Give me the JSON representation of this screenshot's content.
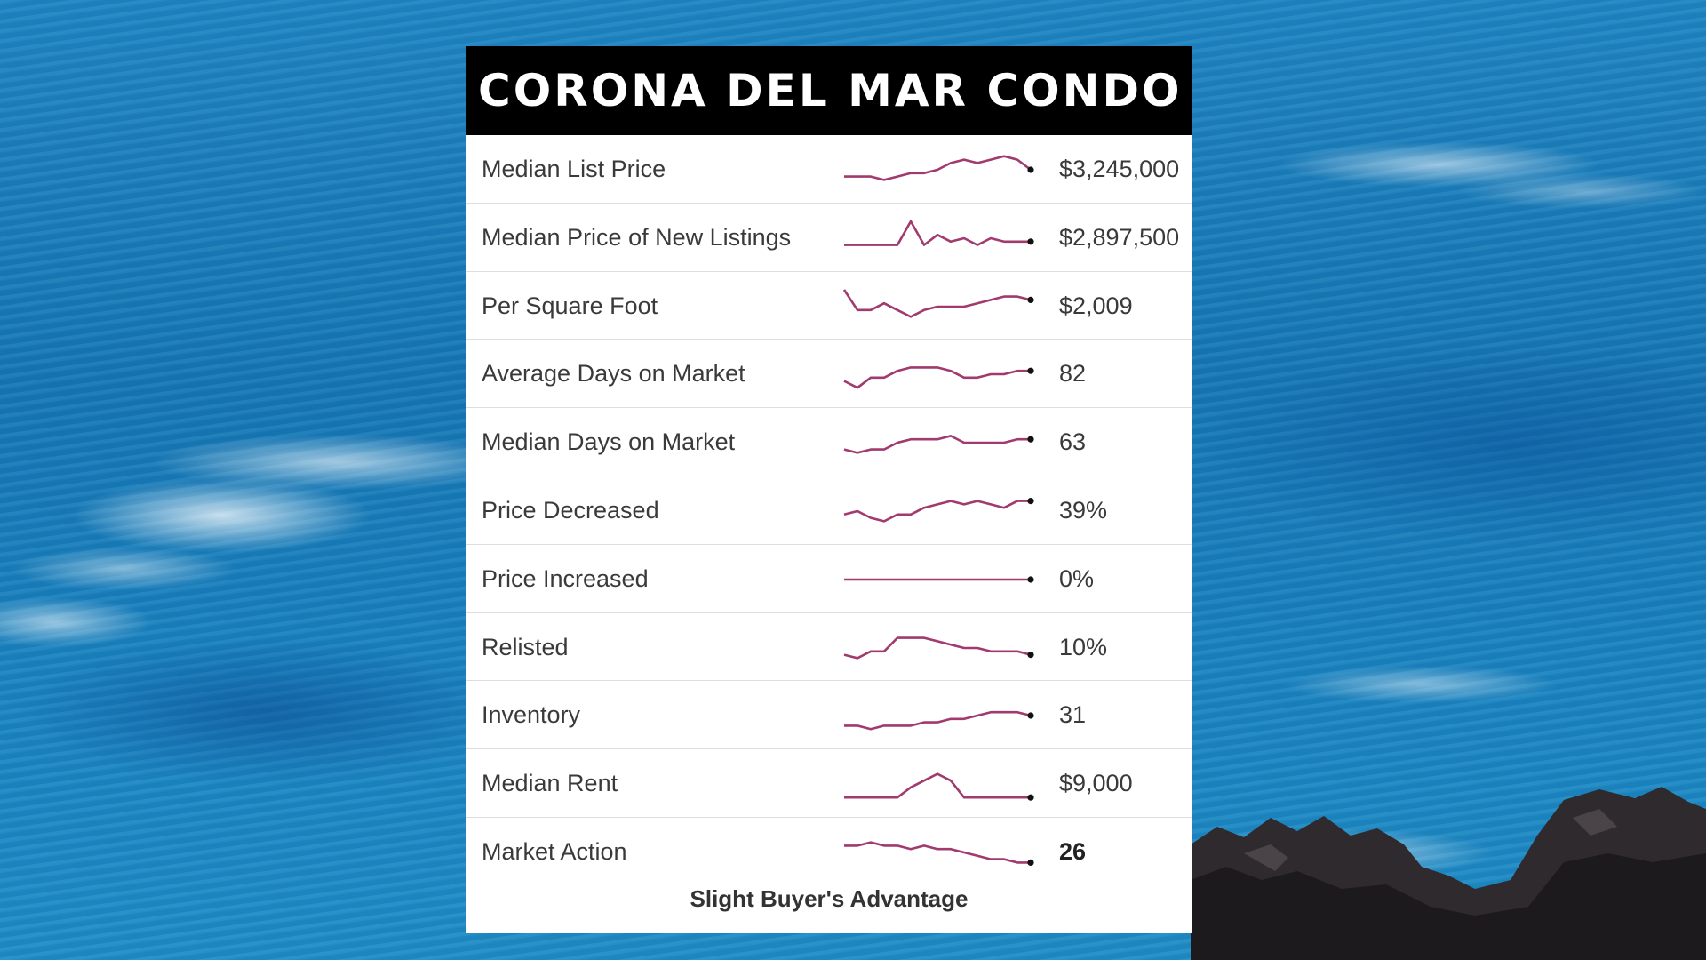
{
  "title": "CORONA DEL MAR CONDO",
  "colors": {
    "header_bg": "#000000",
    "sparkline": "#a13a6e",
    "sparkline_end": "#111111",
    "card_bg": "#ffffff",
    "text": "#3a3a3a"
  },
  "footer": "Slight Buyer's Advantage",
  "chart_data": {
    "type": "line",
    "series": [
      {
        "name": "Median List Price",
        "value": "$3,245,000",
        "values": [
          3,
          3,
          3,
          2,
          3,
          4,
          4,
          5,
          7,
          8,
          7,
          8,
          9,
          8,
          5
        ]
      },
      {
        "name": "Median Price of New Listings",
        "value": "$2,897,500",
        "values": [
          3,
          3,
          3,
          3,
          3,
          10,
          3,
          6,
          4,
          5,
          3,
          5,
          4,
          4,
          4
        ]
      },
      {
        "name": "Per Square Foot",
        "value": "$2,009",
        "values": [
          10,
          4,
          4,
          6,
          4,
          2,
          4,
          5,
          5,
          5,
          6,
          7,
          8,
          8,
          7
        ]
      },
      {
        "name": "Average Days on Market",
        "value": "82",
        "values": [
          3,
          1,
          4,
          4,
          6,
          7,
          7,
          7,
          6,
          4,
          4,
          5,
          5,
          6,
          6
        ]
      },
      {
        "name": "Median Days on Market",
        "value": "63",
        "values": [
          3,
          2,
          3,
          3,
          5,
          6,
          6,
          6,
          7,
          5,
          5,
          5,
          5,
          6,
          6
        ]
      },
      {
        "name": "Price Decreased",
        "value": "39%",
        "values": [
          4,
          5,
          3,
          2,
          4,
          4,
          6,
          7,
          8,
          7,
          8,
          7,
          6,
          8,
          8
        ]
      },
      {
        "name": "Price Increased",
        "value": "0%",
        "values": [
          5,
          5,
          5,
          5,
          5,
          5,
          5,
          5,
          5,
          5,
          5,
          5,
          5,
          5,
          5
        ]
      },
      {
        "name": "Relisted",
        "value": "10%",
        "values": [
          3,
          2,
          4,
          4,
          8,
          8,
          8,
          7,
          6,
          5,
          5,
          4,
          4,
          4,
          3
        ]
      },
      {
        "name": "Inventory",
        "value": "31",
        "values": [
          2,
          2,
          1,
          2,
          2,
          2,
          3,
          3,
          4,
          4,
          5,
          6,
          6,
          6,
          5
        ]
      },
      {
        "name": "Median Rent",
        "value": "$9,000",
        "values": [
          1,
          1,
          1,
          1,
          1,
          4,
          6,
          8,
          6,
          1,
          1,
          1,
          1,
          1,
          1
        ]
      },
      {
        "name": "Market Action",
        "value": "26",
        "values": [
          7,
          7,
          8,
          7,
          7,
          6,
          7,
          6,
          6,
          5,
          4,
          3,
          3,
          2,
          2
        ]
      }
    ]
  }
}
